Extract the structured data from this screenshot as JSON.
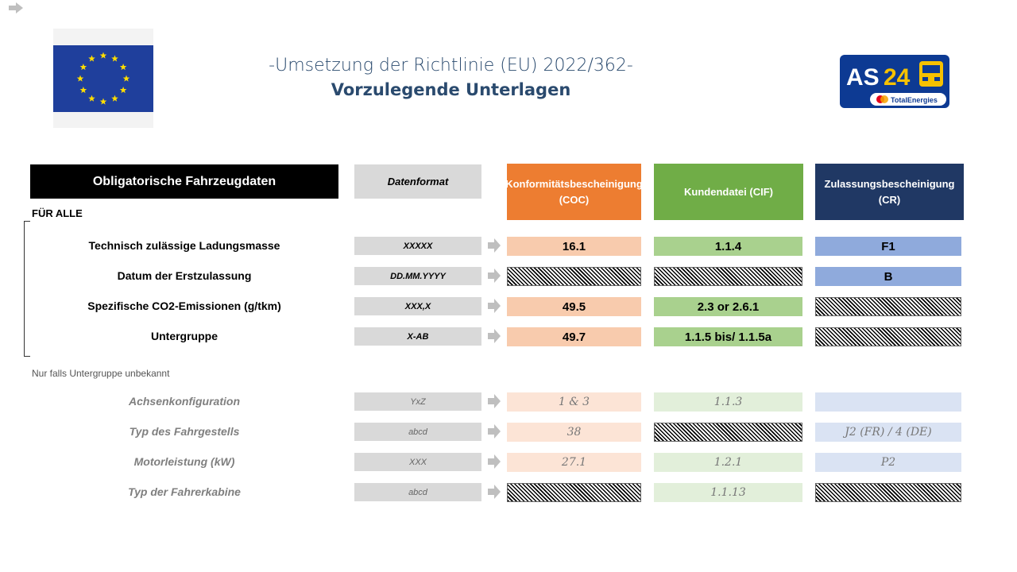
{
  "title_line1": "-Umsetzung der Richtlinie (EU) 2022/362-",
  "title_line2": "Vorzulegende Unterlagen",
  "logo": {
    "text": "AS24",
    "brand": "TotalEnergies"
  },
  "headers": {
    "main": "Obligatorische Fahrzeugdaten",
    "format": "Datenformat",
    "columns": [
      {
        "label": "Konformitätsbescheinigung (COC)",
        "color": "#ed7d31"
      },
      {
        "label": "Kundendatei (CIF)",
        "color": "#70ad47"
      },
      {
        "label": "Zulassungsbescheinigung (CR)",
        "color": "#203864"
      }
    ]
  },
  "section_all": "FÜR ALLE",
  "note_optional": "Nur falls Untergruppe unbekannt",
  "colors": {
    "coc": "#f8cbad",
    "cif": "#a9d18e",
    "cr": "#8faadc",
    "coc_light": "#fce4d6",
    "cif_light": "#e2efda",
    "cr_light": "#dae3f3"
  },
  "rows_main": [
    {
      "label": "Technisch zulässige Ladungsmasse",
      "format": "XXXXX",
      "coc": "16.1",
      "cif": "1.1.4",
      "cr": "F1"
    },
    {
      "label": "Datum der Erstzulassung",
      "format": "DD.MM.YYYY",
      "coc": null,
      "cif": null,
      "cr": "B"
    },
    {
      "label": "Spezifische CO2-Emissionen (g/tkm)",
      "format": "XXX,X",
      "coc": "49.5",
      "cif": "2.3 or 2.6.1",
      "cr": null
    },
    {
      "label": "Untergruppe",
      "format": "X-AB",
      "coc": "49.7",
      "cif": "1.1.5 bis/ 1.1.5a",
      "cr": null
    }
  ],
  "rows_optional": [
    {
      "label": "Achsenkonfiguration",
      "format": "YxZ",
      "coc": "1 & 3",
      "cif": "1.1.3",
      "cr": ""
    },
    {
      "label": "Typ des Fahrgestells",
      "format": "abcd",
      "coc": "38",
      "cif": null,
      "cr": "J2 (FR) / 4 (DE)"
    },
    {
      "label": "Motorleistung (kW)",
      "format": "XXX",
      "coc": "27.1",
      "cif": "1.2.1",
      "cr": "P2"
    },
    {
      "label": "Typ der Fahrerkabine",
      "format": "abcd",
      "coc": null,
      "cif": "1.1.13",
      "cr": null
    }
  ]
}
